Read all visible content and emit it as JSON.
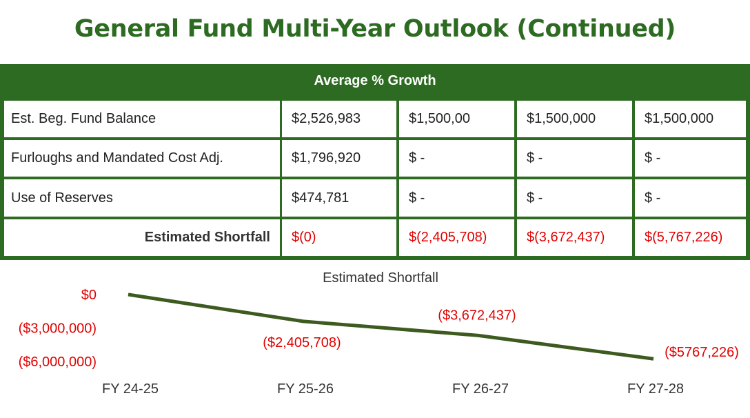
{
  "page": {
    "title": "General Fund Multi-Year Outlook (Continued)"
  },
  "table": {
    "header": "Average % Growth",
    "rows": [
      {
        "label": "Est. Beg. Fund Balance",
        "values": [
          "$2,526,983",
          "$1,500,00",
          "$1,500,000",
          "$1,500,000"
        ]
      },
      {
        "label": "Furloughs and Mandated Cost Adj.",
        "values": [
          "$1,796,920",
          "$ -",
          "$ -",
          "$ -"
        ]
      },
      {
        "label": "Use of Reserves",
        "values": [
          "$474,781",
          "$ -",
          "$ -",
          "$ -"
        ]
      },
      {
        "label": "Estimated Shortfall",
        "values": [
          "$(0)",
          "$(2,405,708)",
          "$(3,672,437)",
          "$(5,767,226)"
        ]
      }
    ]
  },
  "colors": {
    "brand_green": "#2e6b22",
    "line": "#3d5a1f",
    "negative_red": "#e00000",
    "text": "#222222"
  },
  "chart_data": {
    "type": "line",
    "title": "Estimated Shortfall",
    "categories": [
      "FY 24-25",
      "FY 25-26",
      "FY 26-27",
      "FY 27-28"
    ],
    "values": [
      0,
      -2405708,
      -3672437,
      -5767226
    ],
    "data_labels": [
      "",
      "($2,405,708)",
      "($3,672,437)",
      "($5767,226)"
    ],
    "y_tick_labels": [
      "$0",
      "($3,000,000)",
      "($6,000,000)"
    ],
    "y_ticks": [
      0,
      -3000000,
      -6000000
    ],
    "ylim": [
      -6000000,
      0
    ],
    "grid": false,
    "legend": "none"
  }
}
